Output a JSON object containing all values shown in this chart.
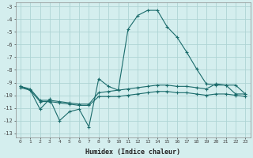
{
  "xlabel": "Humidex (Indice chaleur)",
  "bg_color": "#d4eeee",
  "grid_color": "#aed4d4",
  "line_color": "#1a6b6b",
  "xlim": [
    -0.5,
    23.5
  ],
  "ylim": [
    -13.3,
    -2.7
  ],
  "yticks": [
    -13,
    -12,
    -11,
    -10,
    -9,
    -8,
    -7,
    -6,
    -5,
    -4,
    -3
  ],
  "xticks": [
    0,
    1,
    2,
    3,
    4,
    5,
    6,
    7,
    8,
    9,
    10,
    11,
    12,
    13,
    14,
    15,
    16,
    17,
    18,
    19,
    20,
    21,
    22,
    23
  ],
  "series": [
    {
      "x": [
        0,
        1,
        2,
        3,
        4,
        5,
        6,
        7,
        8,
        9,
        10,
        11,
        12,
        13,
        14,
        15,
        16,
        17,
        18,
        19,
        20,
        21,
        22,
        23
      ],
      "y": [
        -9.3,
        -9.6,
        -11.1,
        -10.3,
        -12.0,
        -11.3,
        -11.1,
        -12.5,
        -8.7,
        -9.3,
        -9.6,
        -4.8,
        -3.7,
        -3.3,
        -3.3,
        -4.6,
        -5.4,
        -6.6,
        -7.9,
        -9.1,
        -9.2,
        -9.2,
        -9.9,
        -9.9
      ]
    },
    {
      "x": [
        0,
        1,
        2,
        3,
        4,
        5,
        6,
        7,
        8,
        9,
        10,
        11,
        12,
        13,
        14,
        15,
        16,
        17,
        18,
        19,
        20,
        21,
        22,
        23
      ],
      "y": [
        -9.3,
        -9.5,
        -10.4,
        -10.4,
        -10.5,
        -10.6,
        -10.7,
        -10.7,
        -9.8,
        -9.7,
        -9.6,
        -9.5,
        -9.4,
        -9.3,
        -9.2,
        -9.2,
        -9.3,
        -9.3,
        -9.4,
        -9.5,
        -9.1,
        -9.2,
        -9.2,
        -9.9
      ]
    },
    {
      "x": [
        0,
        1,
        2,
        3,
        4,
        5,
        6,
        7,
        8,
        9,
        10,
        11,
        12,
        13,
        14,
        15,
        16,
        17,
        18,
        19,
        20,
        21,
        22,
        23
      ],
      "y": [
        -9.4,
        -9.6,
        -10.5,
        -10.5,
        -10.6,
        -10.7,
        -10.8,
        -10.8,
        -10.1,
        -10.1,
        -10.1,
        -10.0,
        -9.9,
        -9.8,
        -9.7,
        -9.7,
        -9.8,
        -9.8,
        -9.9,
        -10.0,
        -9.9,
        -9.9,
        -10.0,
        -10.1
      ]
    }
  ]
}
